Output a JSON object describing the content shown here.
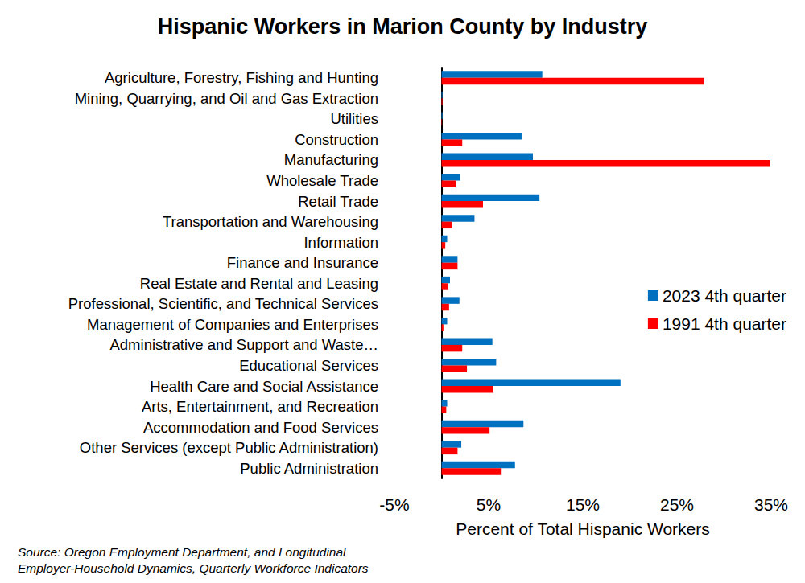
{
  "chart_data": {
    "type": "bar",
    "orientation": "horizontal",
    "title": "Hispanic Workers in Marion County by Industry",
    "x_label": "Percent of Total Hispanic Workers",
    "source": "Source: Oregon Employment Department, and Longitudinal\nEmployer-Household Dynamics, Quarterly Workforce Indicators",
    "categories": [
      "Agriculture, Forestry, Fishing and Hunting",
      "Mining, Quarrying, and Oil and Gas Extraction",
      "Utilities",
      "Construction",
      "Manufacturing",
      "Wholesale Trade",
      "Retail Trade",
      "Transportation and Warehousing",
      "Information",
      "Finance and Insurance",
      "Real Estate and Rental and Leasing",
      "Professional, Scientific, and Technical Services",
      "Management of Companies and Enterprises",
      "Administrative and Support and Waste…",
      "Educational Services",
      "Health Care and Social Assistance",
      "Arts, Entertainment, and Recreation",
      "Accommodation and Food Services",
      "Other Services (except Public Administration)",
      "Public Administration"
    ],
    "series": [
      {
        "name": "2023 4th quarter",
        "color": "#0070C0",
        "values": [
          10.7,
          0.1,
          0.1,
          8.5,
          9.7,
          2.0,
          10.4,
          3.5,
          0.6,
          1.7,
          0.9,
          1.9,
          0.6,
          5.4,
          5.8,
          19.0,
          0.6,
          8.7,
          2.1,
          7.8
        ]
      },
      {
        "name": "1991 4th quarter",
        "color": "#FF0000",
        "values": [
          27.9,
          0.1,
          0.05,
          2.2,
          34.9,
          1.5,
          4.4,
          1.1,
          0.4,
          1.7,
          0.7,
          0.8,
          0.2,
          2.2,
          2.7,
          5.5,
          0.5,
          5.1,
          1.7,
          6.3
        ]
      }
    ],
    "xlim": [
      -5,
      35
    ],
    "xticks": [
      {
        "value": -5,
        "label": "-5%"
      },
      {
        "value": 5,
        "label": "5%"
      },
      {
        "value": 15,
        "label": "15%"
      },
      {
        "value": 25,
        "label": "25%"
      },
      {
        "value": 35,
        "label": "35%"
      }
    ],
    "grid": false,
    "legend": "right"
  }
}
